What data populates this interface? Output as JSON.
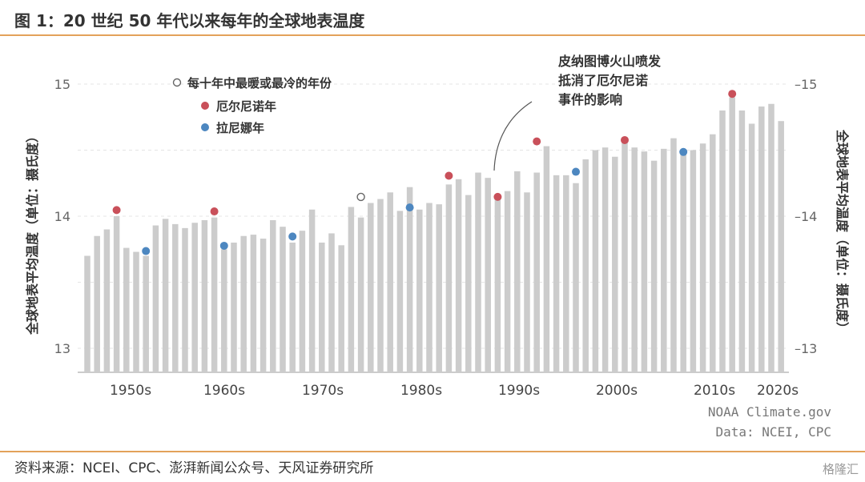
{
  "header": {
    "title": "图 1：20 世纪 50 年代以来每年的全球地表温度"
  },
  "footer": {
    "source": "资料来源：NCEI、CPC、澎湃新闻公众号、天风证券研究所",
    "watermark": "格隆汇"
  },
  "colors": {
    "bar": "#cccccc",
    "el_nino": "#c9505a",
    "la_nina": "#4d87c0",
    "rule": "#e3a25a"
  },
  "chart_data": {
    "type": "bar",
    "ylabel_left": "全球地表平均温度（单位：摄氏度）",
    "ylabel_right": "全球地表平均温度（单位：摄氏度）",
    "ylim": [
      12.7,
      15.1
    ],
    "yticks_left": [
      "15",
      "14",
      "13"
    ],
    "yticks_right": [
      "15",
      "14",
      "13"
    ],
    "grid": true,
    "legend": {
      "position": "top-left",
      "items": [
        {
          "label": "每十年中最暖或最冷的年份",
          "marker": "hollow"
        },
        {
          "label": "厄尔尼诺年",
          "marker": "el_nino"
        },
        {
          "label": "拉尼娜年",
          "marker": "la_nina"
        }
      ]
    },
    "annotation": {
      "text": [
        "皮纳图博火山喷发",
        "抵消了厄尔尼诺",
        "事件的影响"
      ],
      "target_year": 1992
    },
    "credit": [
      "NOAA Climate.gov",
      "Data: NCEI, CPC"
    ],
    "x_labels": [
      "1950s",
      "1960s",
      "1970s",
      "1980s",
      "1990s",
      "2000s",
      "2010s",
      "2020s"
    ],
    "years": [
      1950,
      1951,
      1952,
      1953,
      1954,
      1955,
      1956,
      1957,
      1958,
      1959,
      1960,
      1961,
      1962,
      1963,
      1964,
      1965,
      1966,
      1967,
      1968,
      1969,
      1970,
      1971,
      1972,
      1973,
      1974,
      1975,
      1976,
      1977,
      1978,
      1979,
      1980,
      1981,
      1982,
      1983,
      1984,
      1985,
      1986,
      1987,
      1988,
      1989,
      1990,
      1991,
      1992,
      1993,
      1994,
      1995,
      1996,
      1997,
      1998,
      1999,
      2000,
      2001,
      2002,
      2003,
      2004,
      2005,
      2006,
      2007,
      2008,
      2009,
      2010,
      2011,
      2012,
      2013,
      2014,
      2015,
      2016,
      2017,
      2018,
      2019,
      2020,
      2021
    ],
    "values": [
      13.7,
      13.85,
      13.9,
      14.0,
      13.76,
      13.73,
      13.7,
      13.93,
      13.98,
      13.94,
      13.91,
      13.95,
      13.97,
      13.99,
      13.75,
      13.8,
      13.85,
      13.86,
      13.83,
      13.97,
      13.92,
      13.8,
      13.89,
      14.05,
      13.8,
      13.87,
      13.78,
      14.07,
      13.99,
      14.1,
      14.13,
      14.18,
      14.04,
      14.22,
      14.05,
      14.1,
      14.09,
      14.24,
      14.28,
      14.16,
      14.33,
      14.29,
      14.14,
      14.19,
      14.34,
      14.18,
      14.33,
      14.53,
      14.31,
      14.31,
      14.25,
      14.43,
      14.5,
      14.52,
      14.45,
      14.58,
      14.52,
      14.49,
      14.42,
      14.51,
      14.59,
      14.49,
      14.5,
      14.55,
      14.62,
      14.8,
      14.9,
      14.8,
      14.7,
      14.83,
      14.85,
      14.72
    ],
    "markers": [
      {
        "year": 1953,
        "value": 14.04,
        "kind": "el_nino"
      },
      {
        "year": 1956,
        "value": 13.73,
        "kind": "la_nina"
      },
      {
        "year": 1963,
        "value": 14.03,
        "kind": "el_nino"
      },
      {
        "year": 1964,
        "value": 13.77,
        "kind": "la_nina"
      },
      {
        "year": 1971,
        "value": 13.84,
        "kind": "la_nina"
      },
      {
        "year": 1978,
        "value": 14.14,
        "kind": "hollow"
      },
      {
        "year": 1983,
        "value": 14.06,
        "kind": "la_nina"
      },
      {
        "year": 1987,
        "value": 14.3,
        "kind": "el_nino"
      },
      {
        "year": 1992,
        "value": 14.14,
        "kind": "el_nino"
      },
      {
        "year": 1996,
        "value": 14.56,
        "kind": "el_nino"
      },
      {
        "year": 2000,
        "value": 14.33,
        "kind": "la_nina"
      },
      {
        "year": 2005,
        "value": 14.57,
        "kind": "el_nino"
      },
      {
        "year": 2011,
        "value": 14.48,
        "kind": "la_nina"
      },
      {
        "year": 2016,
        "value": 14.92,
        "kind": "el_nino"
      }
    ]
  }
}
